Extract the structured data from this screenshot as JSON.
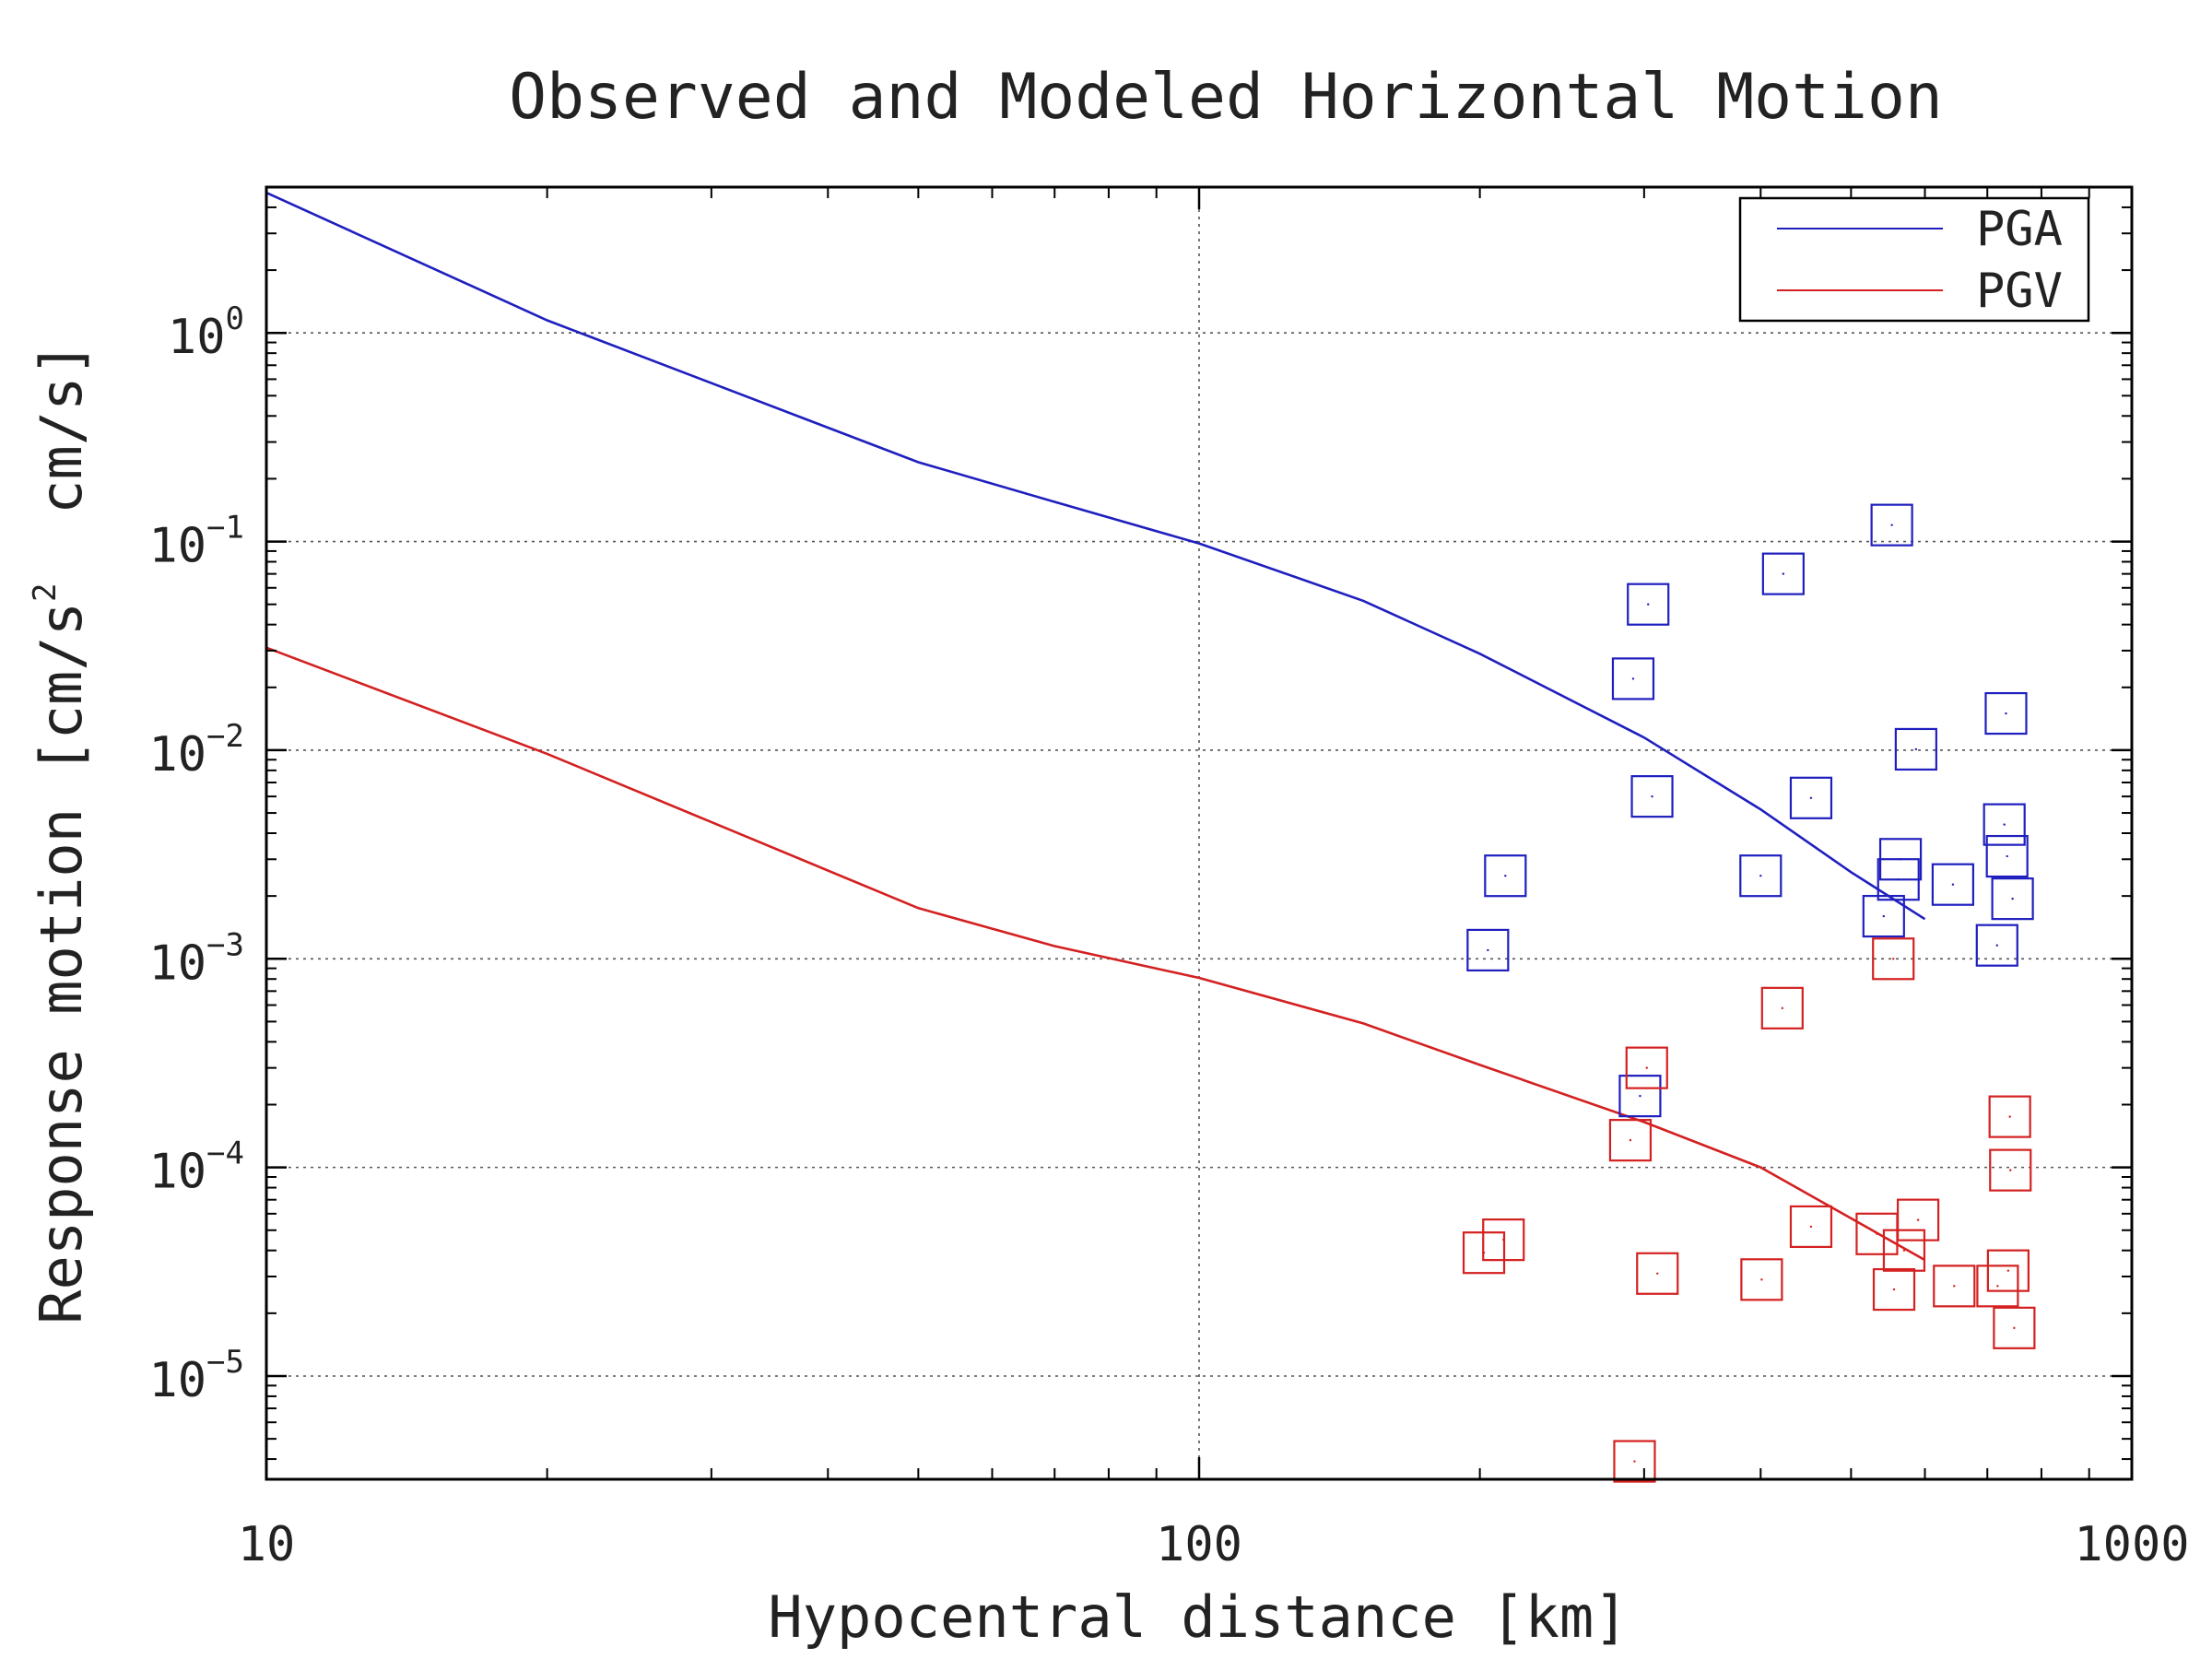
{
  "chart_data": {
    "type": "scatter",
    "title": "Observed and Modeled Horizontal Motion",
    "xlabel": "Hypocentral distance [km]",
    "ylabel": "Response motion [cm/s^2 cm/s]",
    "ylabel_parts": [
      "Response motion [cm/s",
      "2",
      "  cm/s]"
    ],
    "x_scale": "log",
    "y_scale": "log",
    "xlim": [
      10,
      1000
    ],
    "ylim": [
      3.2e-06,
      5
    ],
    "x_ticks": [
      {
        "value": 10,
        "label": "10"
      },
      {
        "value": 100,
        "label": "100"
      },
      {
        "value": 1000,
        "label": "1000"
      }
    ],
    "y_ticks": [
      {
        "value": 1e-05,
        "base": "10",
        "exp": "−5"
      },
      {
        "value": 0.0001,
        "base": "10",
        "exp": "−4"
      },
      {
        "value": 0.001,
        "base": "10",
        "exp": "−3"
      },
      {
        "value": 0.01,
        "base": "10",
        "exp": "−2"
      },
      {
        "value": 0.1,
        "base": "10",
        "exp": "−1"
      },
      {
        "value": 1,
        "base": "10",
        "exp": "0"
      }
    ],
    "grid": true,
    "legend": {
      "position": "top-right",
      "entries": [
        "PGA",
        "PGV"
      ]
    },
    "colors": {
      "PGA": "#1f1fbf",
      "PGV": "#d42020",
      "grid": "#555555",
      "frame": "#000000"
    },
    "series": [
      {
        "name": "PGA",
        "kind": "line",
        "x": [
          10,
          20,
          50,
          70,
          100,
          150,
          200,
          300,
          400,
          500,
          600
        ],
        "y": [
          4.7,
          1.15,
          0.24,
          0.155,
          0.098,
          0.052,
          0.029,
          0.0115,
          0.0052,
          0.0026,
          0.00155
        ]
      },
      {
        "name": "PGV",
        "kind": "line",
        "x": [
          10,
          20,
          50,
          70,
          100,
          150,
          200,
          300,
          400,
          500,
          600
        ],
        "y": [
          0.031,
          0.0096,
          0.00175,
          0.00115,
          0.00081,
          0.00049,
          0.00031,
          0.000165,
          0.0001,
          5.7e-05,
          3.6e-05
        ]
      },
      {
        "name": "PGA observed",
        "kind": "markers",
        "marker": "square",
        "x": [
          204,
          213,
          292,
          297,
          303,
          306,
          400,
          423,
          453,
          542,
          553,
          562,
          565,
          587,
          643,
          717,
          730,
          733,
          735,
          745
        ],
        "y": [
          0.0011,
          0.0025,
          0.022,
          0.00022,
          0.05,
          0.006,
          0.0025,
          0.07,
          0.0059,
          0.0016,
          0.12,
          0.0024,
          0.003,
          0.0101,
          0.00227,
          0.00116,
          0.0044,
          0.015,
          0.0031,
          0.00194
        ]
      },
      {
        "name": "PGV observed",
        "kind": "markers",
        "marker": "square",
        "x": [
          202,
          212,
          290,
          293,
          302,
          310,
          401,
          422,
          453,
          533,
          555,
          556,
          570,
          590,
          645,
          718,
          737,
          740,
          741,
          748
        ],
        "y": [
          3.9e-05,
          4.5e-05,
          0.000135,
          3.9e-06,
          0.0003,
          3.1e-05,
          2.9e-05,
          0.00058,
          5.2e-05,
          4.8e-05,
          0.001,
          2.6e-05,
          4e-05,
          5.6e-05,
          2.7e-05,
          2.7e-05,
          3.2e-05,
          0.000175,
          9.7e-05,
          1.7e-05
        ]
      }
    ]
  }
}
